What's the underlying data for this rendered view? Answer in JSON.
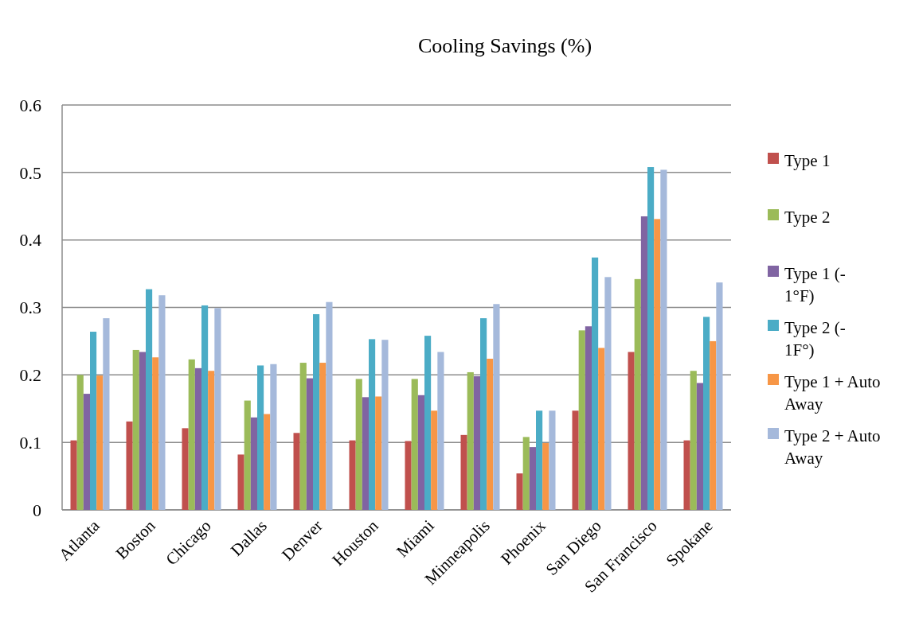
{
  "chart_data": {
    "type": "bar",
    "title": "Cooling Savings (%)",
    "categories": [
      "Atlanta",
      "Boston",
      "Chicago",
      "Dallas",
      "Denver",
      "Houston",
      "Miami",
      "Minneapolis",
      "Phoenix",
      "San Diego",
      "San Francisco",
      "Spokane"
    ],
    "series": [
      {
        "name": "Type 1",
        "color": "#c0504d",
        "values": [
          0.103,
          0.131,
          0.121,
          0.082,
          0.114,
          0.103,
          0.102,
          0.111,
          0.054,
          0.147,
          0.234,
          0.103
        ]
      },
      {
        "name": "Type 2",
        "color": "#9bbb59",
        "values": [
          0.2,
          0.237,
          0.223,
          0.162,
          0.218,
          0.194,
          0.194,
          0.204,
          0.108,
          0.266,
          0.342,
          0.206
        ]
      },
      {
        "name": "Type 1 (- 1°F)",
        "color": "#8064a2",
        "values": [
          0.172,
          0.234,
          0.21,
          0.137,
          0.195,
          0.167,
          0.17,
          0.198,
          0.093,
          0.272,
          0.435,
          0.188
        ]
      },
      {
        "name": "Type 2 (- 1F°)",
        "color": "#4bacc6",
        "values": [
          0.264,
          0.327,
          0.303,
          0.214,
          0.29,
          0.253,
          0.258,
          0.284,
          0.147,
          0.374,
          0.508,
          0.286
        ]
      },
      {
        "name": "Type 1 + Auto Away",
        "color": "#f79646",
        "values": [
          0.199,
          0.226,
          0.206,
          0.142,
          0.218,
          0.168,
          0.147,
          0.224,
          0.099,
          0.24,
          0.431,
          0.25
        ]
      },
      {
        "name": "Type 2 + Auto Away",
        "color": "#a5b9db",
        "values": [
          0.284,
          0.318,
          0.299,
          0.216,
          0.308,
          0.252,
          0.234,
          0.305,
          0.147,
          0.345,
          0.504,
          0.337
        ]
      }
    ],
    "ylim": [
      0,
      0.6
    ],
    "yticks": [
      0,
      0.1,
      0.2,
      0.3,
      0.4,
      0.5,
      0.6
    ],
    "grid": "y",
    "legend": "right"
  }
}
